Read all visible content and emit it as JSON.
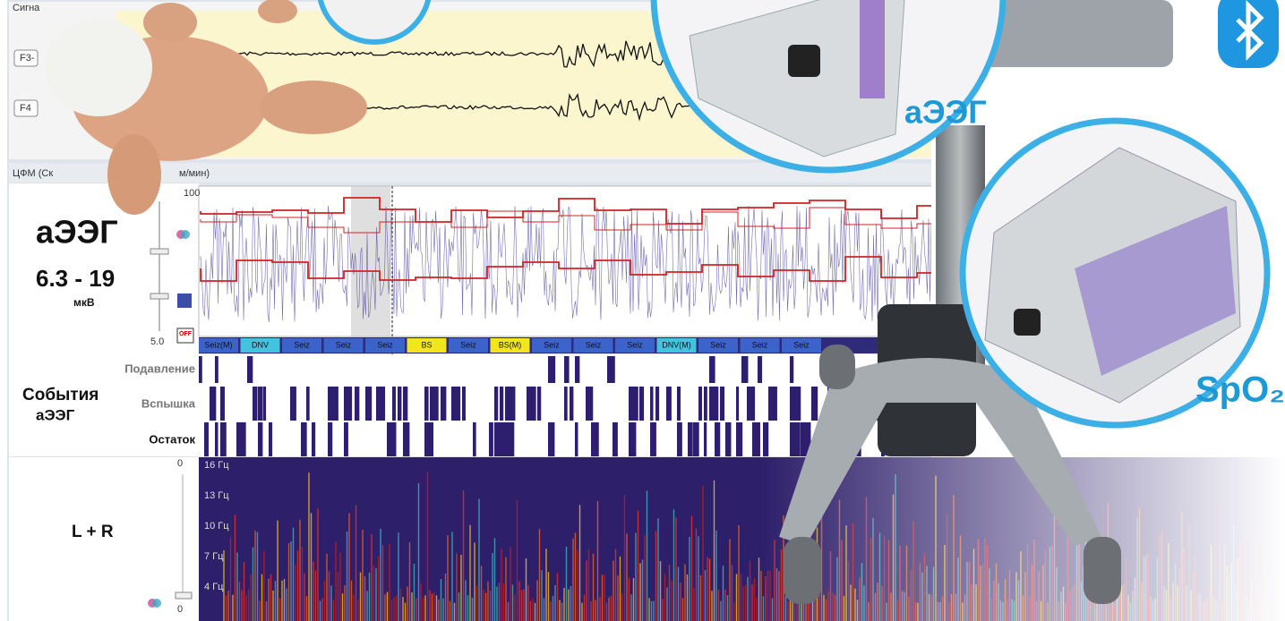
{
  "signal_panel": {
    "title": "Сигна",
    "channels": [
      "F3-",
      "F4"
    ]
  },
  "cfm_panel": {
    "title": "ЦФМ (Ск",
    "title_suffix": "м/мин)"
  },
  "aeeg": {
    "label": "аЭЭГ",
    "range": "6.3 - 19",
    "unit": "мкВ",
    "scale_top": "100",
    "scale_bottom": "5.0",
    "off_icon": "OFF"
  },
  "events": [
    {
      "label": "Seiz(M)",
      "color": "#3b63c9"
    },
    {
      "label": "DNV",
      "color": "#43c3dd"
    },
    {
      "label": "Seiz",
      "color": "#3b63c9"
    },
    {
      "label": "Seiz",
      "color": "#3b63c9"
    },
    {
      "label": "Seiz",
      "color": "#3b63c9"
    },
    {
      "label": "BS",
      "color": "#f2e51c"
    },
    {
      "label": "Seiz",
      "color": "#3b63c9"
    },
    {
      "label": "BS(M)",
      "color": "#f2e51c"
    },
    {
      "label": "Seiz",
      "color": "#3b63c9"
    },
    {
      "label": "Seiz",
      "color": "#3b63c9"
    },
    {
      "label": "Seiz",
      "color": "#3b63c9"
    },
    {
      "label": "DNV(M)",
      "color": "#43c3dd"
    },
    {
      "label": "Seiz",
      "color": "#3b63c9"
    },
    {
      "label": "Seiz",
      "color": "#3b63c9"
    },
    {
      "label": "Seiz",
      "color": "#3b63c9"
    }
  ],
  "event_rows": {
    "title": [
      "События",
      "аЭЭГ"
    ],
    "rows": [
      "Подавление",
      "Вспышка",
      "Остаток"
    ]
  },
  "spectrum": {
    "label": "L + R",
    "scale_top": "0",
    "scale_bottom": "0",
    "frequencies": [
      "16 Гц",
      "13 Гц",
      "10 Гц",
      "7 Гц",
      "4 Гц"
    ]
  },
  "devices": {
    "aeeg_label": "аЭЭГ",
    "spo2_label": "SpO₂"
  }
}
